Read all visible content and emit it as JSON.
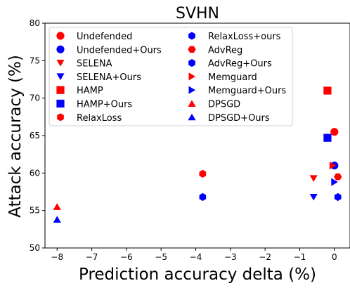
{
  "chart_data": {
    "type": "scatter",
    "title": "SVHN",
    "xlabel": "Prediction accuracy delta (%)",
    "ylabel": "Attack accuracy (%)",
    "xlim": [
      -8.35,
      0.45
    ],
    "ylim": [
      50,
      80
    ],
    "x_ticks": [
      -8,
      -7,
      -6,
      -5,
      -4,
      -3,
      -2,
      -1,
      0
    ],
    "x_tick_labels": [
      "−8",
      "−7",
      "−6",
      "−5",
      "−4",
      "−3",
      "−2",
      "−1",
      "0"
    ],
    "y_ticks": [
      50,
      55,
      60,
      65,
      70,
      75,
      80
    ],
    "y_tick_labels": [
      "50",
      "55",
      "60",
      "65",
      "70",
      "75",
      "80"
    ],
    "grid": false,
    "legend_placement": "top-left, two columns",
    "colors": {
      "baseline": "#ff0000",
      "ours": "#0000ff"
    },
    "series": [
      {
        "name": "Undefended",
        "marker": "circle",
        "color": "#ff0000",
        "points": [
          {
            "x": 0.0,
            "y": 65.5
          }
        ]
      },
      {
        "name": "Undefended+Ours",
        "marker": "circle",
        "color": "#0000ff",
        "points": [
          {
            "x": 0.0,
            "y": 61.0
          }
        ]
      },
      {
        "name": "SELENA",
        "marker": "triangle-down",
        "color": "#ff0000",
        "points": [
          {
            "x": -0.6,
            "y": 59.3
          }
        ]
      },
      {
        "name": "SELENA+Ours",
        "marker": "triangle-down",
        "color": "#0000ff",
        "points": [
          {
            "x": -0.6,
            "y": 56.8
          }
        ]
      },
      {
        "name": "HAMP",
        "marker": "square",
        "color": "#ff0000",
        "points": [
          {
            "x": -0.2,
            "y": 71.0
          }
        ]
      },
      {
        "name": "HAMP+Ours",
        "marker": "square",
        "color": "#0000ff",
        "points": [
          {
            "x": -0.2,
            "y": 64.7
          }
        ]
      },
      {
        "name": "RelaxLoss",
        "marker": "hexagon",
        "color": "#ff0000",
        "points": [
          {
            "x": -3.8,
            "y": 59.9
          }
        ]
      },
      {
        "name": "RelaxLoss+ours",
        "marker": "hexagon",
        "color": "#0000ff",
        "points": [
          {
            "x": -3.8,
            "y": 56.8
          }
        ]
      },
      {
        "name": "AdvReg",
        "marker": "hexagon-flat",
        "color": "#ff0000",
        "points": [
          {
            "x": 0.1,
            "y": 59.5
          }
        ]
      },
      {
        "name": "AdvReg+Ours",
        "marker": "hexagon",
        "color": "#0000ff",
        "points": [
          {
            "x": 0.1,
            "y": 56.8
          }
        ]
      },
      {
        "name": "Memguard",
        "marker": "triangle-right",
        "color": "#ff0000",
        "points": [
          {
            "x": -0.05,
            "y": 61.0
          }
        ]
      },
      {
        "name": "Memguard+Ours",
        "marker": "triangle-right",
        "color": "#0000ff",
        "points": [
          {
            "x": 0.0,
            "y": 58.8
          }
        ]
      },
      {
        "name": "DPSGD",
        "marker": "triangle-up",
        "color": "#ff0000",
        "points": [
          {
            "x": -8.0,
            "y": 55.5
          }
        ]
      },
      {
        "name": "DPSGD+Ours",
        "marker": "triangle-up",
        "color": "#0000ff",
        "points": [
          {
            "x": -8.0,
            "y": 53.8
          }
        ]
      }
    ]
  }
}
